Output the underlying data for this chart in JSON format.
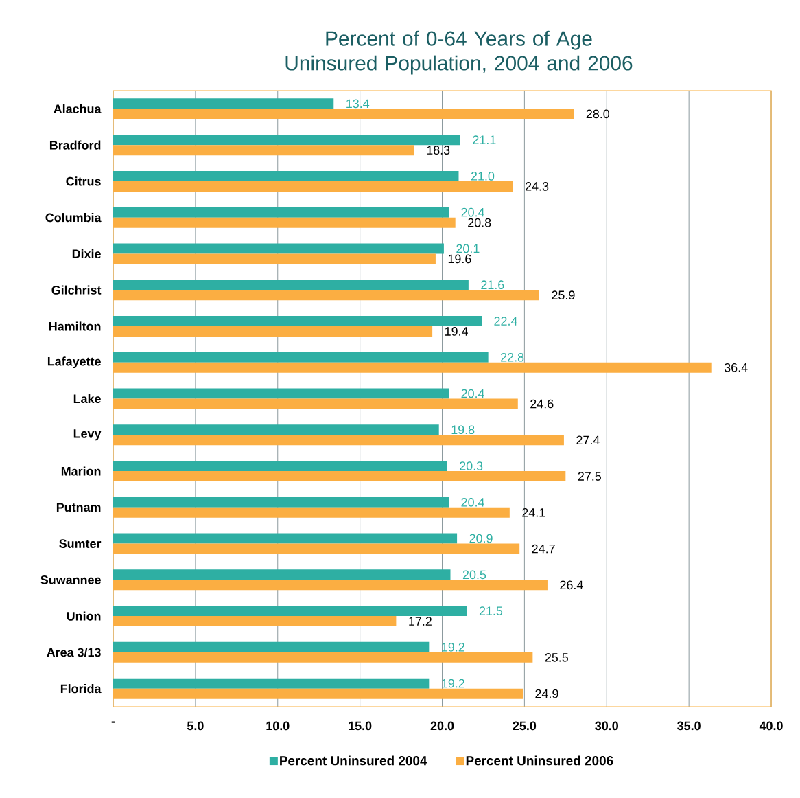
{
  "chart_data": {
    "type": "bar",
    "orientation": "horizontal",
    "title": "Percent of 0-64 Years of Age Uninsured Population, 2004 and 2006",
    "categories": [
      "Alachua",
      "Bradford",
      "Citrus",
      "Columbia",
      "Dixie",
      "Gilchrist",
      "Hamilton",
      "Lafayette",
      "Lake",
      "Levy",
      "Marion",
      "Putnam",
      "Sumter",
      "Suwannee",
      "Union",
      "Area 3/13",
      "Florida"
    ],
    "series": [
      {
        "name": "Percent Uninsured 2004",
        "color": "#2eafa3",
        "values": [
          13.4,
          21.1,
          21.0,
          20.4,
          20.1,
          21.6,
          22.4,
          22.8,
          20.4,
          19.8,
          20.3,
          20.4,
          20.9,
          20.5,
          21.5,
          19.2,
          19.2
        ],
        "value_labels": [
          "13.4",
          "21.1",
          "21.0",
          "20.4",
          "20.1",
          "21.6",
          "22.4",
          "22.8",
          "20.4",
          "19.8",
          "20.3",
          "20.4",
          "20.9",
          "20.5",
          "21.5",
          "19.2",
          "19.2"
        ]
      },
      {
        "name": "Percent Uninsured 2006",
        "color": "#fbae42",
        "values": [
          28.0,
          18.3,
          24.3,
          20.8,
          19.6,
          25.9,
          19.4,
          36.4,
          24.6,
          27.4,
          27.5,
          24.1,
          24.7,
          26.4,
          17.2,
          25.5,
          24.9
        ],
        "value_labels": [
          "28.0",
          "18.3",
          "24.3",
          "20.8",
          "19.6",
          "25.9",
          "19.4",
          "36.4",
          "24.6",
          "27.4",
          "27.5",
          "24.1",
          "24.7",
          "26.4",
          "17.2",
          "25.5",
          "24.9"
        ]
      }
    ],
    "xlim": [
      0,
      40
    ],
    "xticks": [
      {
        "value": 0,
        "label": "-"
      },
      {
        "value": 5,
        "label": "5.0"
      },
      {
        "value": 10,
        "label": "10.0"
      },
      {
        "value": 15,
        "label": "15.0"
      },
      {
        "value": 20,
        "label": "20.0"
      },
      {
        "value": 25,
        "label": "25.0"
      },
      {
        "value": 30,
        "label": "30.0"
      },
      {
        "value": 35,
        "label": "35.0"
      },
      {
        "value": 40,
        "label": "40.0"
      }
    ],
    "grid": "x",
    "legend": "bottom"
  }
}
